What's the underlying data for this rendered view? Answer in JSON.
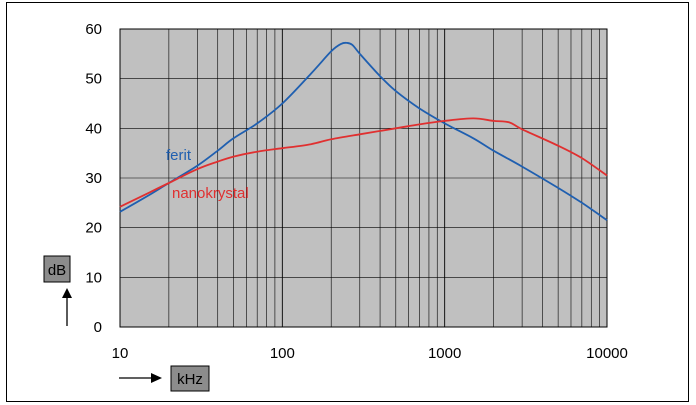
{
  "chart_data": {
    "type": "line",
    "x_scale": "log",
    "xlim": [
      10,
      10000
    ],
    "ylim": [
      0,
      60
    ],
    "x_ticks": [
      10,
      100,
      1000,
      10000
    ],
    "y_ticks": [
      0,
      10,
      20,
      30,
      40,
      50,
      60
    ],
    "xlabel": "kHz",
    "ylabel": "dB",
    "grid": true,
    "plot_background": "#c0c0c0",
    "series": [
      {
        "name": "ferit",
        "color": "#1f5fb0",
        "x": [
          10,
          15,
          20,
          30,
          40,
          50,
          70,
          100,
          150,
          200,
          230,
          250,
          270,
          300,
          400,
          500,
          700,
          1000,
          1500,
          2000,
          3000,
          5000,
          7000,
          10000
        ],
        "y": [
          23.2,
          26.5,
          29.0,
          32.5,
          35.5,
          38.0,
          41.0,
          45.0,
          51.0,
          55.5,
          57.0,
          57.2,
          56.8,
          55.0,
          50.5,
          47.5,
          44.0,
          41.0,
          38.0,
          35.5,
          32.3,
          28.0,
          25.0,
          21.5
        ]
      },
      {
        "name": "nanokrystal",
        "color": "#e03030",
        "x": [
          10,
          15,
          20,
          30,
          40,
          50,
          70,
          100,
          150,
          200,
          300,
          500,
          700,
          1000,
          1500,
          2000,
          2500,
          3000,
          5000,
          7000,
          10000
        ],
        "y": [
          24.2,
          27.0,
          29.0,
          31.8,
          33.3,
          34.3,
          35.3,
          36.0,
          36.8,
          37.8,
          38.8,
          40.0,
          40.8,
          41.5,
          42.0,
          41.5,
          41.2,
          39.8,
          36.5,
          34.0,
          30.5
        ]
      }
    ]
  }
}
